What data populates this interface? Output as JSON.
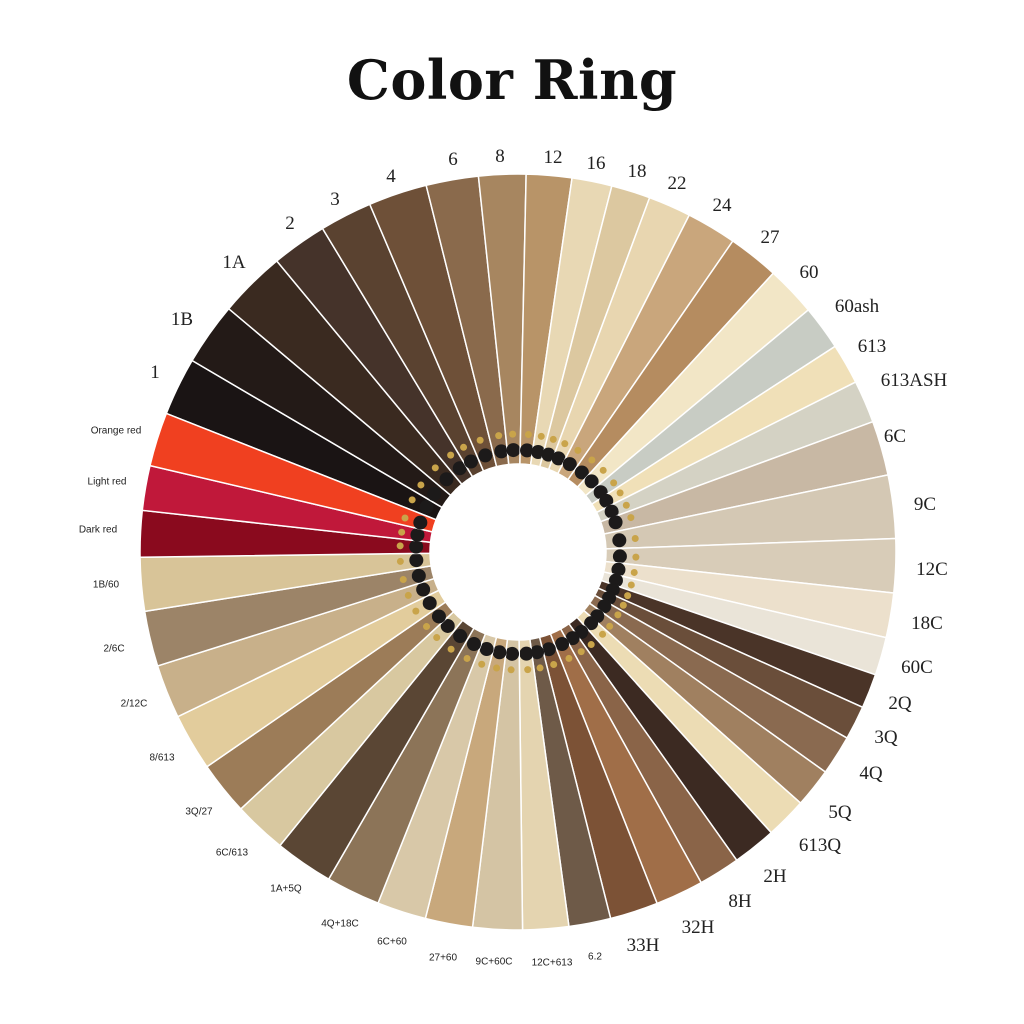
{
  "title": "Color Ring",
  "swatches": [
    {
      "label": "1",
      "color": "#1a1414",
      "size": "big"
    },
    {
      "label": "1B",
      "color": "#231a17",
      "size": "big"
    },
    {
      "label": "1A",
      "color": "#3a2a20",
      "size": "big"
    },
    {
      "label": "2",
      "color": "#45332a",
      "size": "big"
    },
    {
      "label": "3",
      "color": "#5a4230",
      "size": "big"
    },
    {
      "label": "4",
      "color": "#6e5038",
      "size": "big"
    },
    {
      "label": "6",
      "color": "#8a6a4c",
      "size": "big"
    },
    {
      "label": "8",
      "color": "#a78660",
      "size": "big"
    },
    {
      "label": "12",
      "color": "#b89468",
      "size": "big"
    },
    {
      "label": "16",
      "color": "#e8d8b4",
      "size": "big"
    },
    {
      "label": "18",
      "color": "#dcc8a0",
      "size": "big"
    },
    {
      "label": "22",
      "color": "#e8d6b0",
      "size": "big"
    },
    {
      "label": "24",
      "color": "#c9a67c",
      "size": "big"
    },
    {
      "label": "27",
      "color": "#b58c60",
      "size": "big"
    },
    {
      "label": "60",
      "color": "#f2e6c6",
      "size": "big"
    },
    {
      "label": "60ash",
      "color": "#c8ccc4",
      "size": "big"
    },
    {
      "label": "613",
      "color": "#f0e0b8",
      "size": "big"
    },
    {
      "label": "613ASH",
      "color": "#d4d2c4",
      "size": "big"
    },
    {
      "label": "6C",
      "color": "#c8b8a4",
      "size": "big"
    },
    {
      "label": "9C",
      "color": "#d4c8b4",
      "size": "big"
    },
    {
      "label": "12C",
      "color": "#d8ccb8",
      "size": "big"
    },
    {
      "label": "18C",
      "color": "#ece0cc",
      "size": "big"
    },
    {
      "label": "60C",
      "color": "#eae4d8",
      "size": "big"
    },
    {
      "label": "2Q",
      "color": "#4a3428",
      "size": "big"
    },
    {
      "label": "3Q",
      "color": "#6a4e3a",
      "size": "big"
    },
    {
      "label": "4Q",
      "color": "#8a6a50",
      "size": "big"
    },
    {
      "label": "5Q",
      "color": "#a08060",
      "size": "big"
    },
    {
      "label": "613Q",
      "color": "#ecdcb4",
      "size": "big"
    },
    {
      "label": "2H",
      "color": "#3c2a22",
      "size": "big"
    },
    {
      "label": "8H",
      "color": "#8a6448",
      "size": "big"
    },
    {
      "label": "32H",
      "color": "#a06e48",
      "size": "big"
    },
    {
      "label": "33H",
      "color": "#7c5236",
      "size": "big"
    },
    {
      "label": "6.2",
      "color": "#6e5a48",
      "size": "small"
    },
    {
      "label": "12C+613",
      "color": "#e4d4b0",
      "size": "small"
    },
    {
      "label": "9C+60C",
      "color": "#d4c4a4",
      "size": "small"
    },
    {
      "label": "27+60",
      "color": "#c8a87c",
      "size": "small"
    },
    {
      "label": "6C+60",
      "color": "#d8c8a8",
      "size": "small"
    },
    {
      "label": "4Q+18C",
      "color": "#8c7458",
      "size": "small"
    },
    {
      "label": "1A+5Q",
      "color": "#5a4634",
      "size": "small"
    },
    {
      "label": "6C/613",
      "color": "#d8c8a0",
      "size": "small"
    },
    {
      "label": "3Q/27",
      "color": "#9c7c58",
      "size": "small"
    },
    {
      "label": "8/613",
      "color": "#e2cc9c",
      "size": "small"
    },
    {
      "label": "2/12C",
      "color": "#c8b08a",
      "size": "small"
    },
    {
      "label": "2/6C",
      "color": "#9c8468",
      "size": "small"
    },
    {
      "label": "1B/60",
      "color": "#d8c498",
      "size": "small"
    },
    {
      "label": "Dark red",
      "color": "#8a0a1e",
      "size": "small"
    },
    {
      "label": "Light red",
      "color": "#c0183a",
      "size": "small"
    },
    {
      "label": "Orange red",
      "color": "#f04020",
      "size": "small"
    }
  ]
}
